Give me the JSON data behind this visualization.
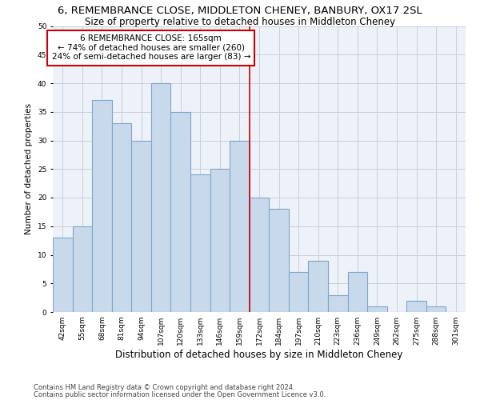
{
  "title": "6, REMEMBRANCE CLOSE, MIDDLETON CHENEY, BANBURY, OX17 2SL",
  "subtitle": "Size of property relative to detached houses in Middleton Cheney",
  "xlabel": "Distribution of detached houses by size in Middleton Cheney",
  "ylabel": "Number of detached properties",
  "footer1": "Contains HM Land Registry data © Crown copyright and database right 2024.",
  "footer2": "Contains public sector information licensed under the Open Government Licence v3.0.",
  "categories": [
    "42sqm",
    "55sqm",
    "68sqm",
    "81sqm",
    "94sqm",
    "107sqm",
    "120sqm",
    "133sqm",
    "146sqm",
    "159sqm",
    "172sqm",
    "184sqm",
    "197sqm",
    "210sqm",
    "223sqm",
    "236sqm",
    "249sqm",
    "262sqm",
    "275sqm",
    "288sqm",
    "301sqm"
  ],
  "values": [
    13,
    15,
    37,
    33,
    30,
    40,
    35,
    24,
    25,
    30,
    20,
    18,
    7,
    9,
    3,
    7,
    1,
    0,
    2,
    1,
    0
  ],
  "bar_color": "#c9d9ec",
  "bar_edge_color": "#7ba7cc",
  "bar_linewidth": 0.8,
  "annotation_line1": "6 REMEMBRANCE CLOSE: 165sqm",
  "annotation_line2": "← 74% of detached houses are smaller (260)",
  "annotation_line3": "24% of semi-detached houses are larger (83) →",
  "vline_x_index": 9.5,
  "vline_color": "#cc0000",
  "vline_linewidth": 1.2,
  "ylim": [
    0,
    50
  ],
  "yticks": [
    0,
    5,
    10,
    15,
    20,
    25,
    30,
    35,
    40,
    45,
    50
  ],
  "grid_color": "#c8d0dc",
  "background_color": "#edf1f8",
  "title_fontsize": 9.5,
  "subtitle_fontsize": 8.5,
  "xlabel_fontsize": 8.5,
  "ylabel_fontsize": 7.5,
  "tick_fontsize": 6.5,
  "annotation_fontsize": 7.5,
  "footer_fontsize": 6.0
}
